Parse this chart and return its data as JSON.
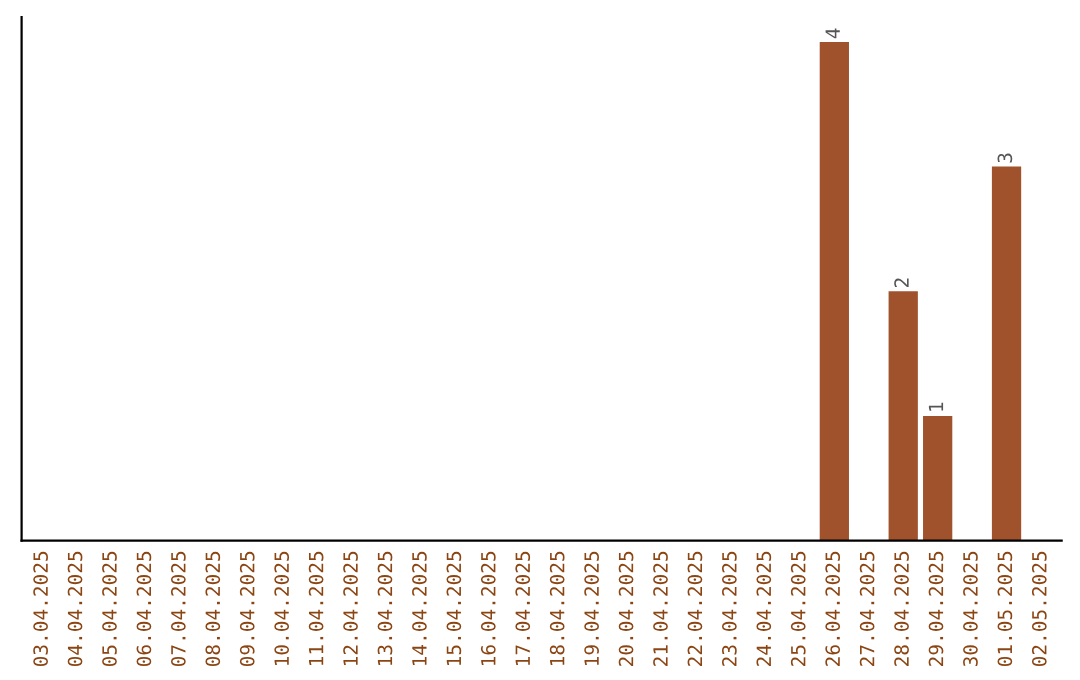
{
  "chart_data": {
    "type": "bar",
    "categories": [
      "03.04.2025",
      "04.04.2025",
      "05.04.2025",
      "06.04.2025",
      "07.04.2025",
      "08.04.2025",
      "09.04.2025",
      "10.04.2025",
      "11.04.2025",
      "12.04.2025",
      "13.04.2025",
      "14.04.2025",
      "15.04.2025",
      "16.04.2025",
      "17.04.2025",
      "18.04.2025",
      "19.04.2025",
      "20.04.2025",
      "21.04.2025",
      "22.04.2025",
      "23.04.2025",
      "24.04.2025",
      "25.04.2025",
      "26.04.2025",
      "27.04.2025",
      "28.04.2025",
      "29.04.2025",
      "30.04.2025",
      "01.05.2025",
      "02.05.2025"
    ],
    "values": [
      null,
      null,
      null,
      null,
      null,
      null,
      null,
      null,
      null,
      null,
      null,
      null,
      null,
      null,
      null,
      null,
      null,
      null,
      null,
      null,
      null,
      null,
      null,
      4,
      null,
      2,
      1,
      null,
      3,
      null
    ],
    "value_labels": [
      null,
      null,
      null,
      null,
      null,
      null,
      null,
      null,
      null,
      null,
      null,
      null,
      null,
      null,
      null,
      null,
      null,
      null,
      null,
      null,
      null,
      null,
      null,
      "4",
      null,
      "2",
      "1",
      null,
      "3",
      null
    ],
    "color": "#a0522d",
    "tick_labels": "x",
    "grid": false
  }
}
